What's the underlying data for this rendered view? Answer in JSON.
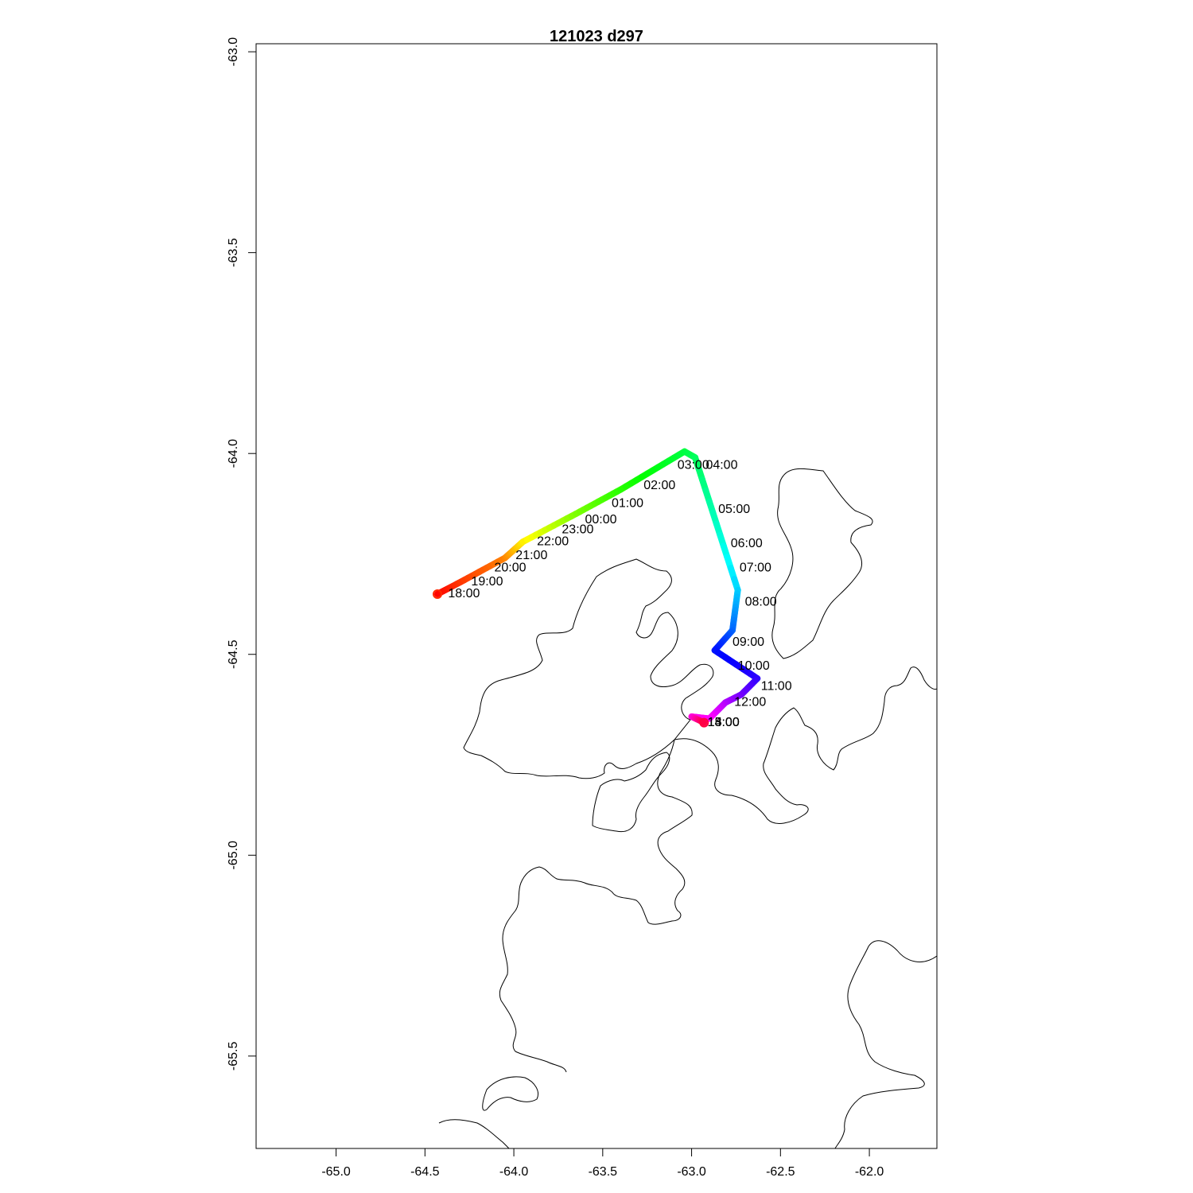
{
  "title": "121023   d297",
  "axes": {
    "x_ticks": [
      "-65.0",
      "-64.5",
      "-64.0",
      "-63.5",
      "-63.0",
      "-62.5",
      "-62.0"
    ],
    "y_ticks": [
      "-63.0",
      "-63.5",
      "-64.0",
      "-64.5",
      "-65.0",
      "-65.5"
    ]
  },
  "chart_data": {
    "type": "line",
    "title": "121023   d297",
    "xlabel": "",
    "ylabel": "",
    "xlim": [
      -65.45,
      -61.62
    ],
    "ylim": [
      -65.73,
      -62.98
    ],
    "grid": false,
    "track": [
      {
        "lon": -64.43,
        "lat": -64.35
      },
      {
        "lon": -64.3,
        "lat": -64.32
      },
      {
        "lon": -64.05,
        "lat": -64.26
      },
      {
        "lon": -63.95,
        "lat": -64.22
      },
      {
        "lon": -63.65,
        "lat": -64.15
      },
      {
        "lon": -63.4,
        "lat": -64.09
      },
      {
        "lon": -63.04,
        "lat": -63.995
      },
      {
        "lon": -62.98,
        "lat": -64.01
      },
      {
        "lon": -62.74,
        "lat": -64.34
      },
      {
        "lon": -62.77,
        "lat": -64.44
      },
      {
        "lon": -62.87,
        "lat": -64.49
      },
      {
        "lon": -62.63,
        "lat": -64.56
      },
      {
        "lon": -62.72,
        "lat": -64.6
      },
      {
        "lon": -62.81,
        "lat": -64.62
      },
      {
        "lon": -62.9,
        "lat": -64.66
      },
      {
        "lon": -63.0,
        "lat": -64.655
      },
      {
        "lon": -62.93,
        "lat": -64.67
      }
    ],
    "hour_labels": [
      {
        "text": "18:00",
        "lon": -64.37,
        "lat": -64.35
      },
      {
        "text": "19:00",
        "lon": -64.24,
        "lat": -64.32
      },
      {
        "text": "20:00",
        "lon": -64.11,
        "lat": -64.285
      },
      {
        "text": "21:00",
        "lon": -63.99,
        "lat": -64.255
      },
      {
        "text": "22:00",
        "lon": -63.87,
        "lat": -64.22
      },
      {
        "text": "23:00",
        "lon": -63.73,
        "lat": -64.19
      },
      {
        "text": "00:00",
        "lon": -63.6,
        "lat": -64.165
      },
      {
        "text": "01:00",
        "lon": -63.45,
        "lat": -64.125
      },
      {
        "text": "02:00",
        "lon": -63.27,
        "lat": -64.08
      },
      {
        "text": "03:00",
        "lon": -63.08,
        "lat": -64.03
      },
      {
        "text": "04:00",
        "lon": -62.92,
        "lat": -64.03
      },
      {
        "text": "05:00",
        "lon": -62.85,
        "lat": -64.14
      },
      {
        "text": "06:00",
        "lon": -62.78,
        "lat": -64.225
      },
      {
        "text": "07:00",
        "lon": -62.73,
        "lat": -64.285
      },
      {
        "text": "08:00",
        "lon": -62.7,
        "lat": -64.37
      },
      {
        "text": "09:00",
        "lon": -62.77,
        "lat": -64.47
      },
      {
        "text": "10:00",
        "lon": -62.74,
        "lat": -64.53
      },
      {
        "text": "11:00",
        "lon": -62.61,
        "lat": -64.58
      },
      {
        "text": "12:00",
        "lon": -62.76,
        "lat": -64.62
      },
      {
        "text": "13:00",
        "lon": -62.91,
        "lat": -64.67
      },
      {
        "text": "14:00",
        "lon": -62.91,
        "lat": -64.67
      },
      {
        "text": "15:00",
        "lon": -62.91,
        "lat": -64.67
      }
    ],
    "color_scale": "rainbow: green at 02:00, cyan 05:00-06:00, blue 09:00-10:00, violet 12:00, magenta 13:00-14:00, red at 18:00"
  }
}
